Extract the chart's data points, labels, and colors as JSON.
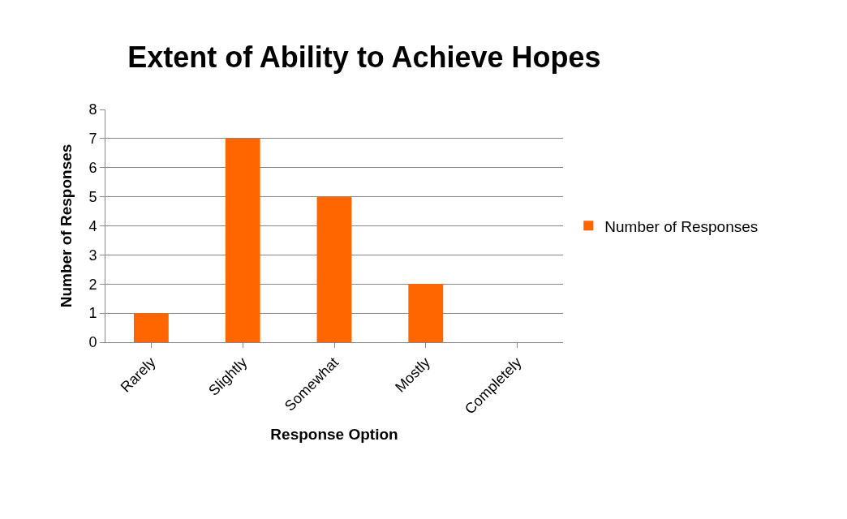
{
  "chart_data": {
    "type": "bar",
    "title": "Extent of Ability to Achieve Hopes",
    "xlabel": "Response Option",
    "ylabel": "Number of Responses",
    "categories": [
      "Rarely",
      "Slightly",
      "Somewhat",
      "Mostly",
      "Completely"
    ],
    "series": [
      {
        "name": "Number of Responses",
        "color": "#ff6600",
        "values": [
          1,
          7,
          5,
          2,
          0
        ]
      }
    ],
    "ylim": [
      0,
      8
    ],
    "yticks": [
      0,
      1,
      2,
      3,
      4,
      5,
      6,
      7,
      8
    ],
    "grid": "y",
    "legend": "right"
  }
}
